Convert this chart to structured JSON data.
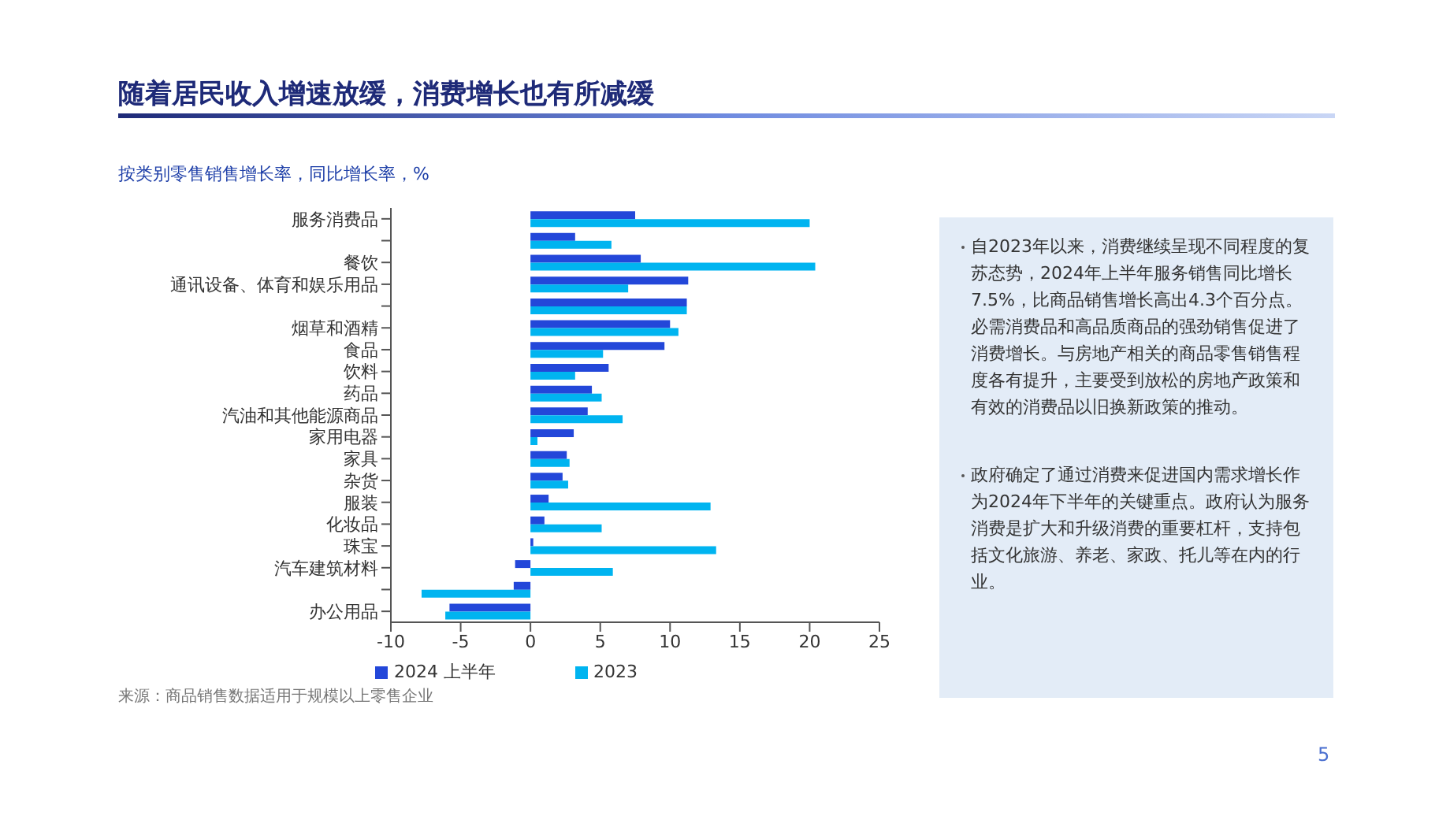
{
  "chart_data": {
    "type": "bar",
    "orientation": "horizontal",
    "title": "随着居民收入增速放缓，消费增长也有所减缓",
    "subtitle": "按类别零售销售增长率，同比增长率，%",
    "categories": [
      "服务消费品",
      null,
      "餐饮",
      "通讯设备、体育和娱乐用品",
      null,
      "烟草和酒精",
      "食品",
      "饮料",
      "药品",
      "汽油和其他能源商品",
      "家用电器",
      "家具",
      "杂货",
      "服装",
      "化妆品",
      "珠宝",
      "汽车建筑材料",
      null,
      "办公用品"
    ],
    "series": [
      {
        "name": "2024 上半年",
        "color": "#2347d9",
        "values": [
          7.5,
          3.2,
          7.9,
          11.3,
          11.2,
          10.0,
          9.6,
          5.6,
          4.4,
          4.1,
          3.1,
          2.6,
          2.3,
          1.3,
          1.0,
          0.2,
          -1.1,
          -1.2,
          -5.8
        ]
      },
      {
        "name": "2023",
        "color": "#00b4f0",
        "values": [
          20.0,
          5.8,
          20.4,
          7.0,
          11.2,
          10.6,
          5.2,
          3.2,
          5.1,
          6.6,
          0.5,
          2.8,
          2.7,
          12.9,
          5.1,
          13.3,
          5.9,
          -7.8,
          -6.1
        ]
      }
    ],
    "xlim": [
      -10,
      25
    ],
    "xticks": [
      -10,
      -5,
      0,
      5,
      10,
      15,
      20,
      25
    ],
    "grid": false,
    "legend": "bottom",
    "annotations": [
      "自2023年以来，消费继续呈现不同程度的复苏态势，2024年上半年服务销售同比增长7.5%，比商品销售增长高出4.3个百分点。必需消费品和高品质商品的强劲销售促进了消费增长。与房地产相关的商品零售销售程度各有提升，主要受到放松的房地产政策和有效的消费品以旧换新政策的推动。",
      "政府确定了通过消费来促进国内需求增长作为2024年下半年的关键重点。政府认为服务消费是扩大和升级消费的重要杠杆，支持包括文化旅游、养老、家政、托儿等在内的行业。",
      "来源：商品销售数据适用于规模以上零售企业",
      "5"
    ]
  }
}
